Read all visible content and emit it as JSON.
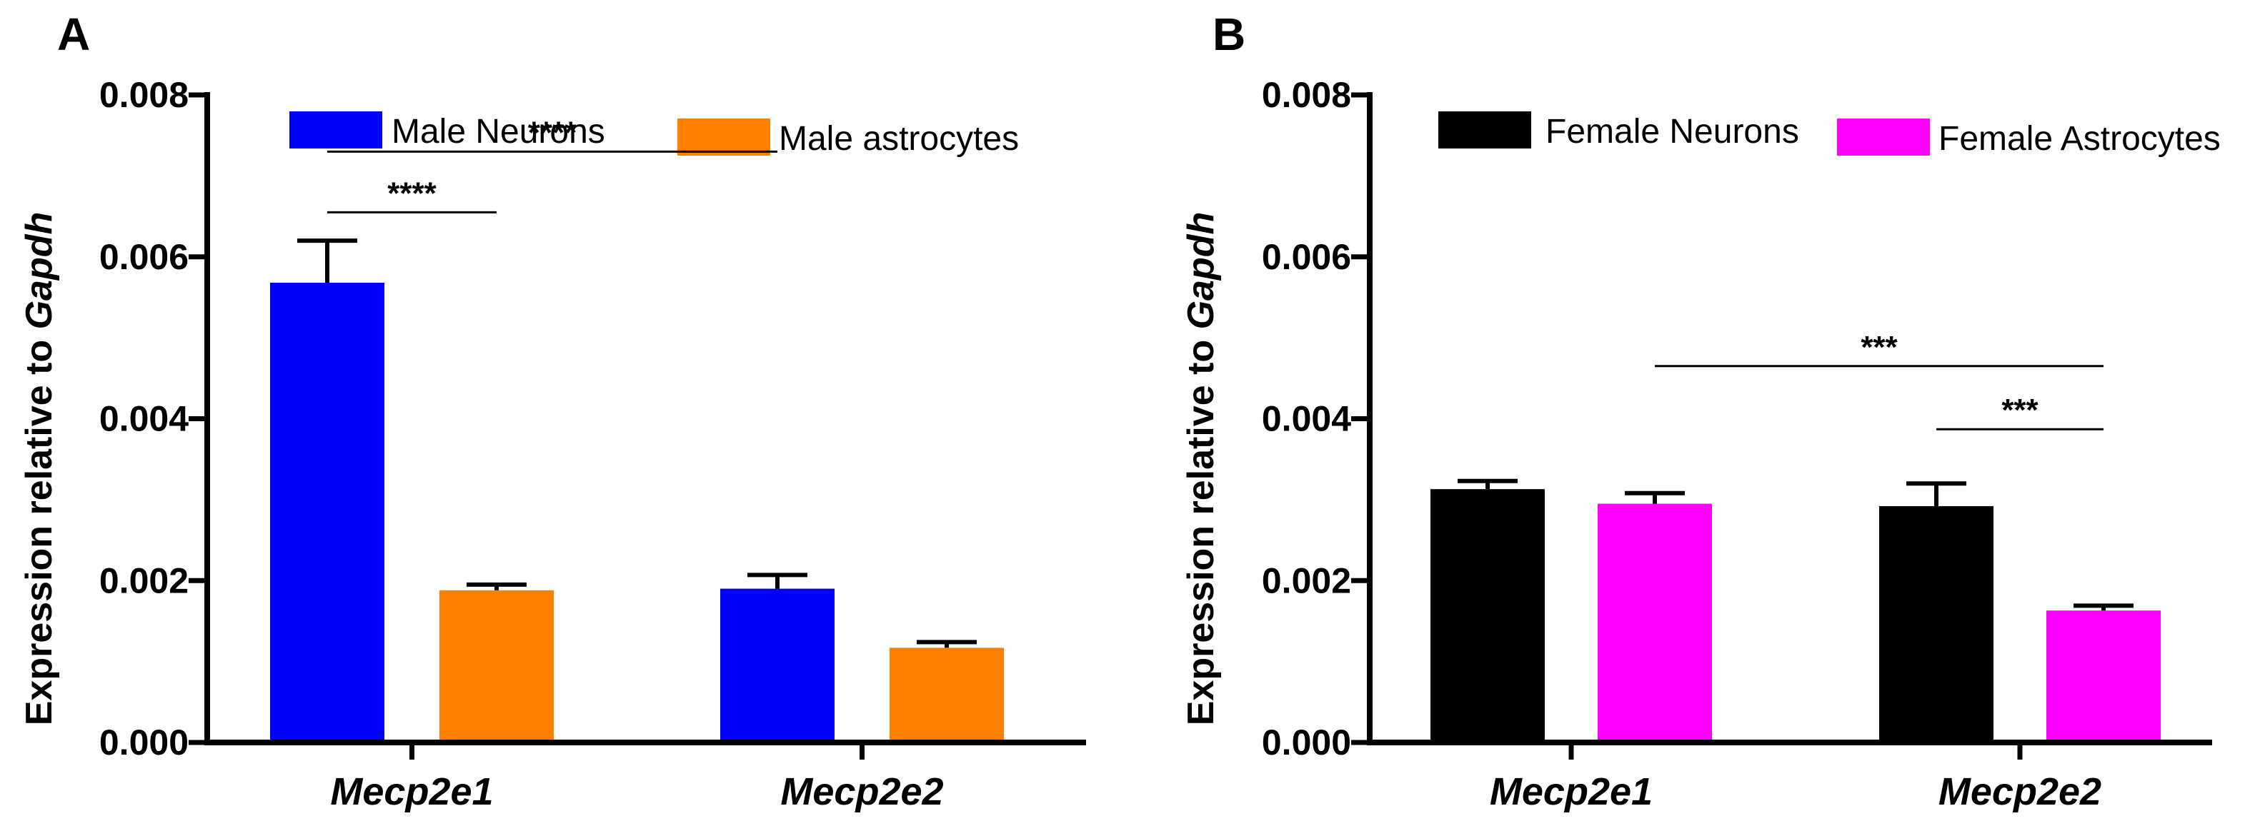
{
  "chart_data": [
    {
      "panel": "A",
      "type": "bar",
      "categories": [
        "Mecp2e1",
        "Mecp2e2"
      ],
      "series": [
        {
          "name": "Male Neurons",
          "color": "#0000ff",
          "values": [
            0.00568,
            0.0019
          ],
          "errors": [
            0.00052,
            0.00017
          ]
        },
        {
          "name": "Male astrocytes",
          "color": "#ff8000",
          "values": [
            0.00188,
            0.00117
          ],
          "errors": [
            7e-05,
            7e-05
          ]
        }
      ],
      "ylabel_prefix": "Expression relative to ",
      "ylabel_italic": "Gapdh",
      "ylim": [
        0,
        0.008
      ],
      "yticks": [
        "0.000",
        "0.002",
        "0.004",
        "0.006",
        "0.008"
      ],
      "significance": [
        {
          "label": "****",
          "from": "Male Neurons | Mecp2e1",
          "to": "Male astrocytes | Mecp2e1",
          "y": 0.00655
        },
        {
          "label": "****",
          "from": "Male Neurons | Mecp2e1",
          "to": "Male Neurons | Mecp2e2",
          "y": 0.0073
        }
      ]
    },
    {
      "panel": "B",
      "type": "bar",
      "categories": [
        "Mecp2e1",
        "Mecp2e2"
      ],
      "series": [
        {
          "name": "Female Neurons",
          "color": "#000000",
          "values": [
            0.00313,
            0.00292
          ],
          "errors": [
            0.0001,
            0.00028
          ]
        },
        {
          "name": "Female Astrocytes",
          "color": "#ff00ff",
          "values": [
            0.00295,
            0.00163
          ],
          "errors": [
            0.00013,
            6e-05
          ]
        }
      ],
      "ylabel_prefix": "Expression relative to ",
      "ylabel_italic": "Gapdh",
      "ylim": [
        0,
        0.008
      ],
      "yticks": [
        "0.000",
        "0.002",
        "0.004",
        "0.006",
        "0.008"
      ],
      "significance": [
        {
          "label": "***",
          "from": "Female Astrocytes | Mecp2e1",
          "to": "Female Astrocytes | Mecp2e2",
          "y": 0.00465
        },
        {
          "label": "***",
          "from": "Female Neurons | Mecp2e2",
          "to": "Female Astrocytes | Mecp2e2",
          "y": 0.00387
        }
      ]
    }
  ]
}
